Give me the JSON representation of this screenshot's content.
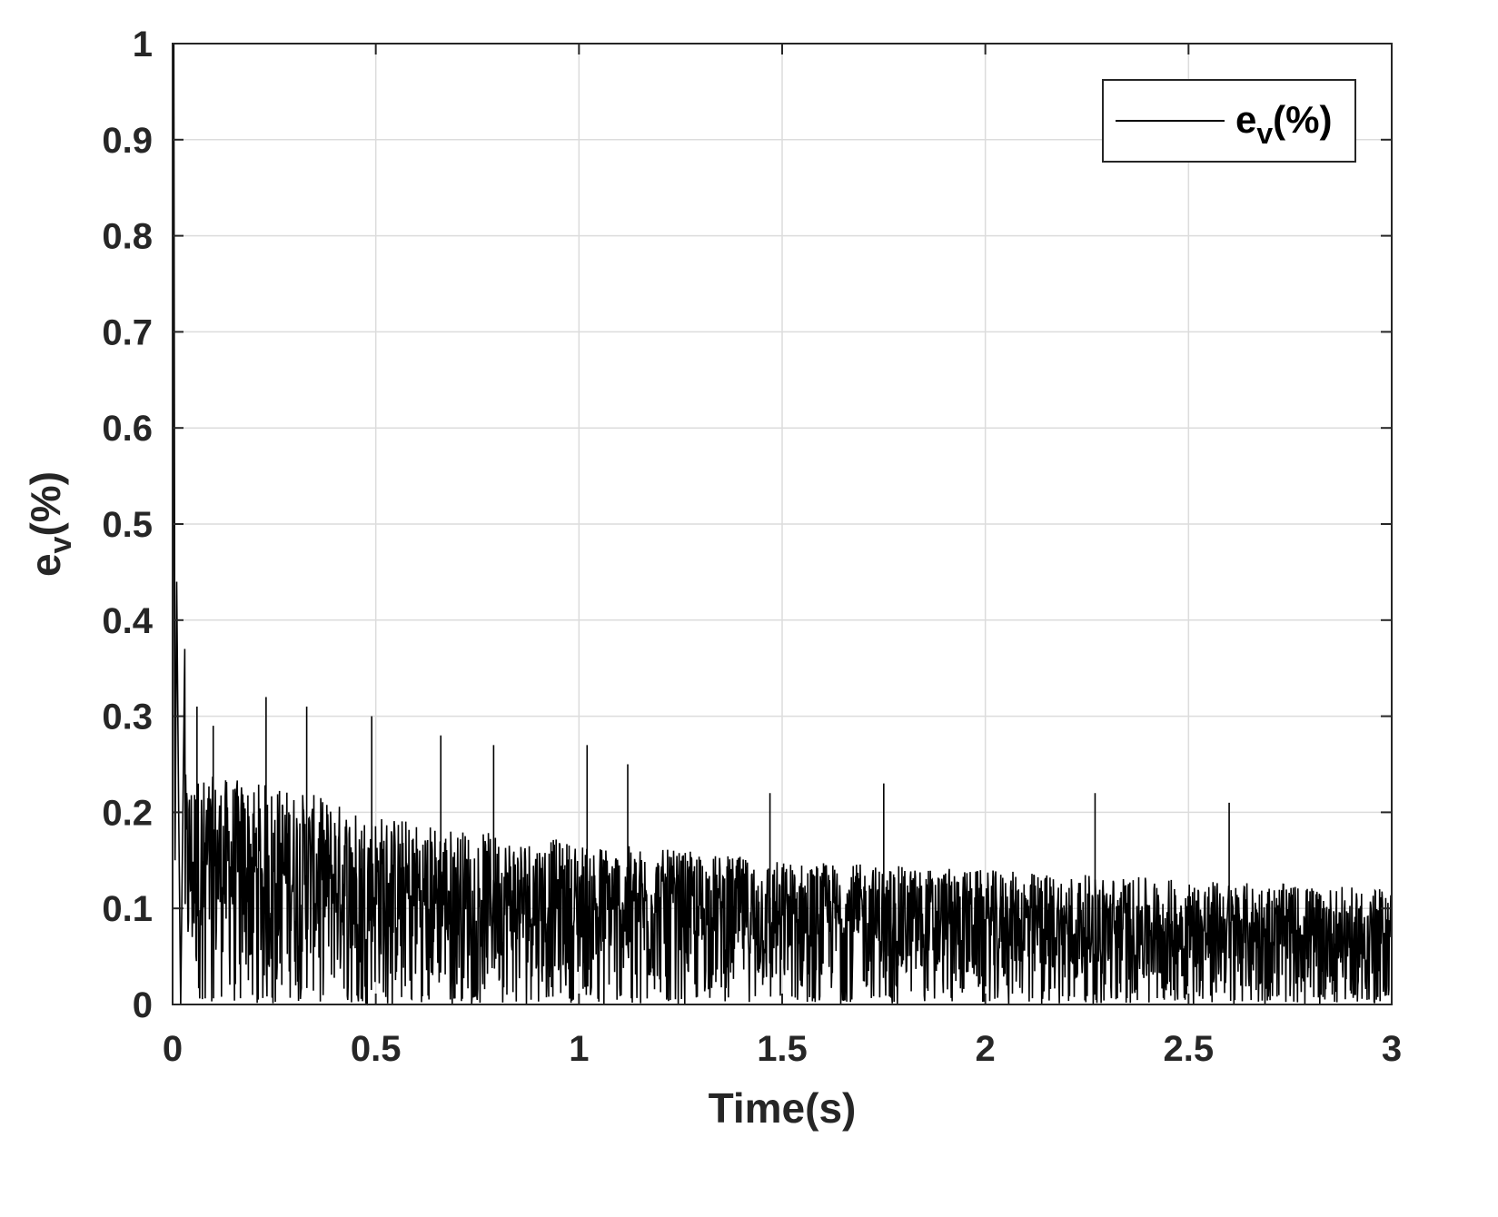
{
  "chart_data": {
    "type": "line",
    "xlabel": "Time(s)",
    "ylabel": {
      "base": "e",
      "sub": "v",
      "rest": "(%)"
    },
    "xlim": [
      0,
      3
    ],
    "ylim": [
      0,
      1
    ],
    "xticks": [
      "0",
      "0.5",
      "1",
      "1.5",
      "2",
      "2.5",
      "3"
    ],
    "yticks": [
      "0",
      "0.1",
      "0.2",
      "0.3",
      "0.4",
      "0.5",
      "0.6",
      "0.7",
      "0.8",
      "0.9",
      "1"
    ],
    "grid": true,
    "legend": {
      "position": "top-right"
    },
    "series": [
      {
        "name": {
          "base": "e",
          "sub": "v",
          "rest": "(%)"
        },
        "color": "#000000",
        "style": "dense-noisy-line",
        "initial_spike": [
          {
            "x": 0.0,
            "y": 0.0
          },
          {
            "x": 0.003,
            "y": 1.0
          },
          {
            "x": 0.006,
            "y": 0.15
          },
          {
            "x": 0.01,
            "y": 0.44
          },
          {
            "x": 0.015,
            "y": 0.2
          },
          {
            "x": 0.02,
            "y": 0.0
          },
          {
            "x": 0.03,
            "y": 0.37
          }
        ],
        "envelope": [
          {
            "x": 0.05,
            "upper": 0.24,
            "mean": 0.12
          },
          {
            "x": 0.25,
            "upper": 0.23,
            "mean": 0.11
          },
          {
            "x": 0.5,
            "upper": 0.2,
            "mean": 0.1
          },
          {
            "x": 0.75,
            "upper": 0.18,
            "mean": 0.09
          },
          {
            "x": 1.0,
            "upper": 0.17,
            "mean": 0.08
          },
          {
            "x": 1.5,
            "upper": 0.15,
            "mean": 0.06
          },
          {
            "x": 2.0,
            "upper": 0.14,
            "mean": 0.05
          },
          {
            "x": 2.5,
            "upper": 0.13,
            "mean": 0.05
          },
          {
            "x": 3.0,
            "upper": 0.12,
            "mean": 0.04
          }
        ],
        "peaks": [
          {
            "x": 0.06,
            "y": 0.31
          },
          {
            "x": 0.1,
            "y": 0.29
          },
          {
            "x": 0.23,
            "y": 0.32
          },
          {
            "x": 0.33,
            "y": 0.31
          },
          {
            "x": 0.49,
            "y": 0.3
          },
          {
            "x": 0.66,
            "y": 0.28
          },
          {
            "x": 0.79,
            "y": 0.27
          },
          {
            "x": 1.02,
            "y": 0.27
          },
          {
            "x": 1.12,
            "y": 0.25
          },
          {
            "x": 1.47,
            "y": 0.22
          },
          {
            "x": 1.75,
            "y": 0.23
          },
          {
            "x": 2.27,
            "y": 0.22
          },
          {
            "x": 2.6,
            "y": 0.21
          }
        ]
      }
    ]
  }
}
